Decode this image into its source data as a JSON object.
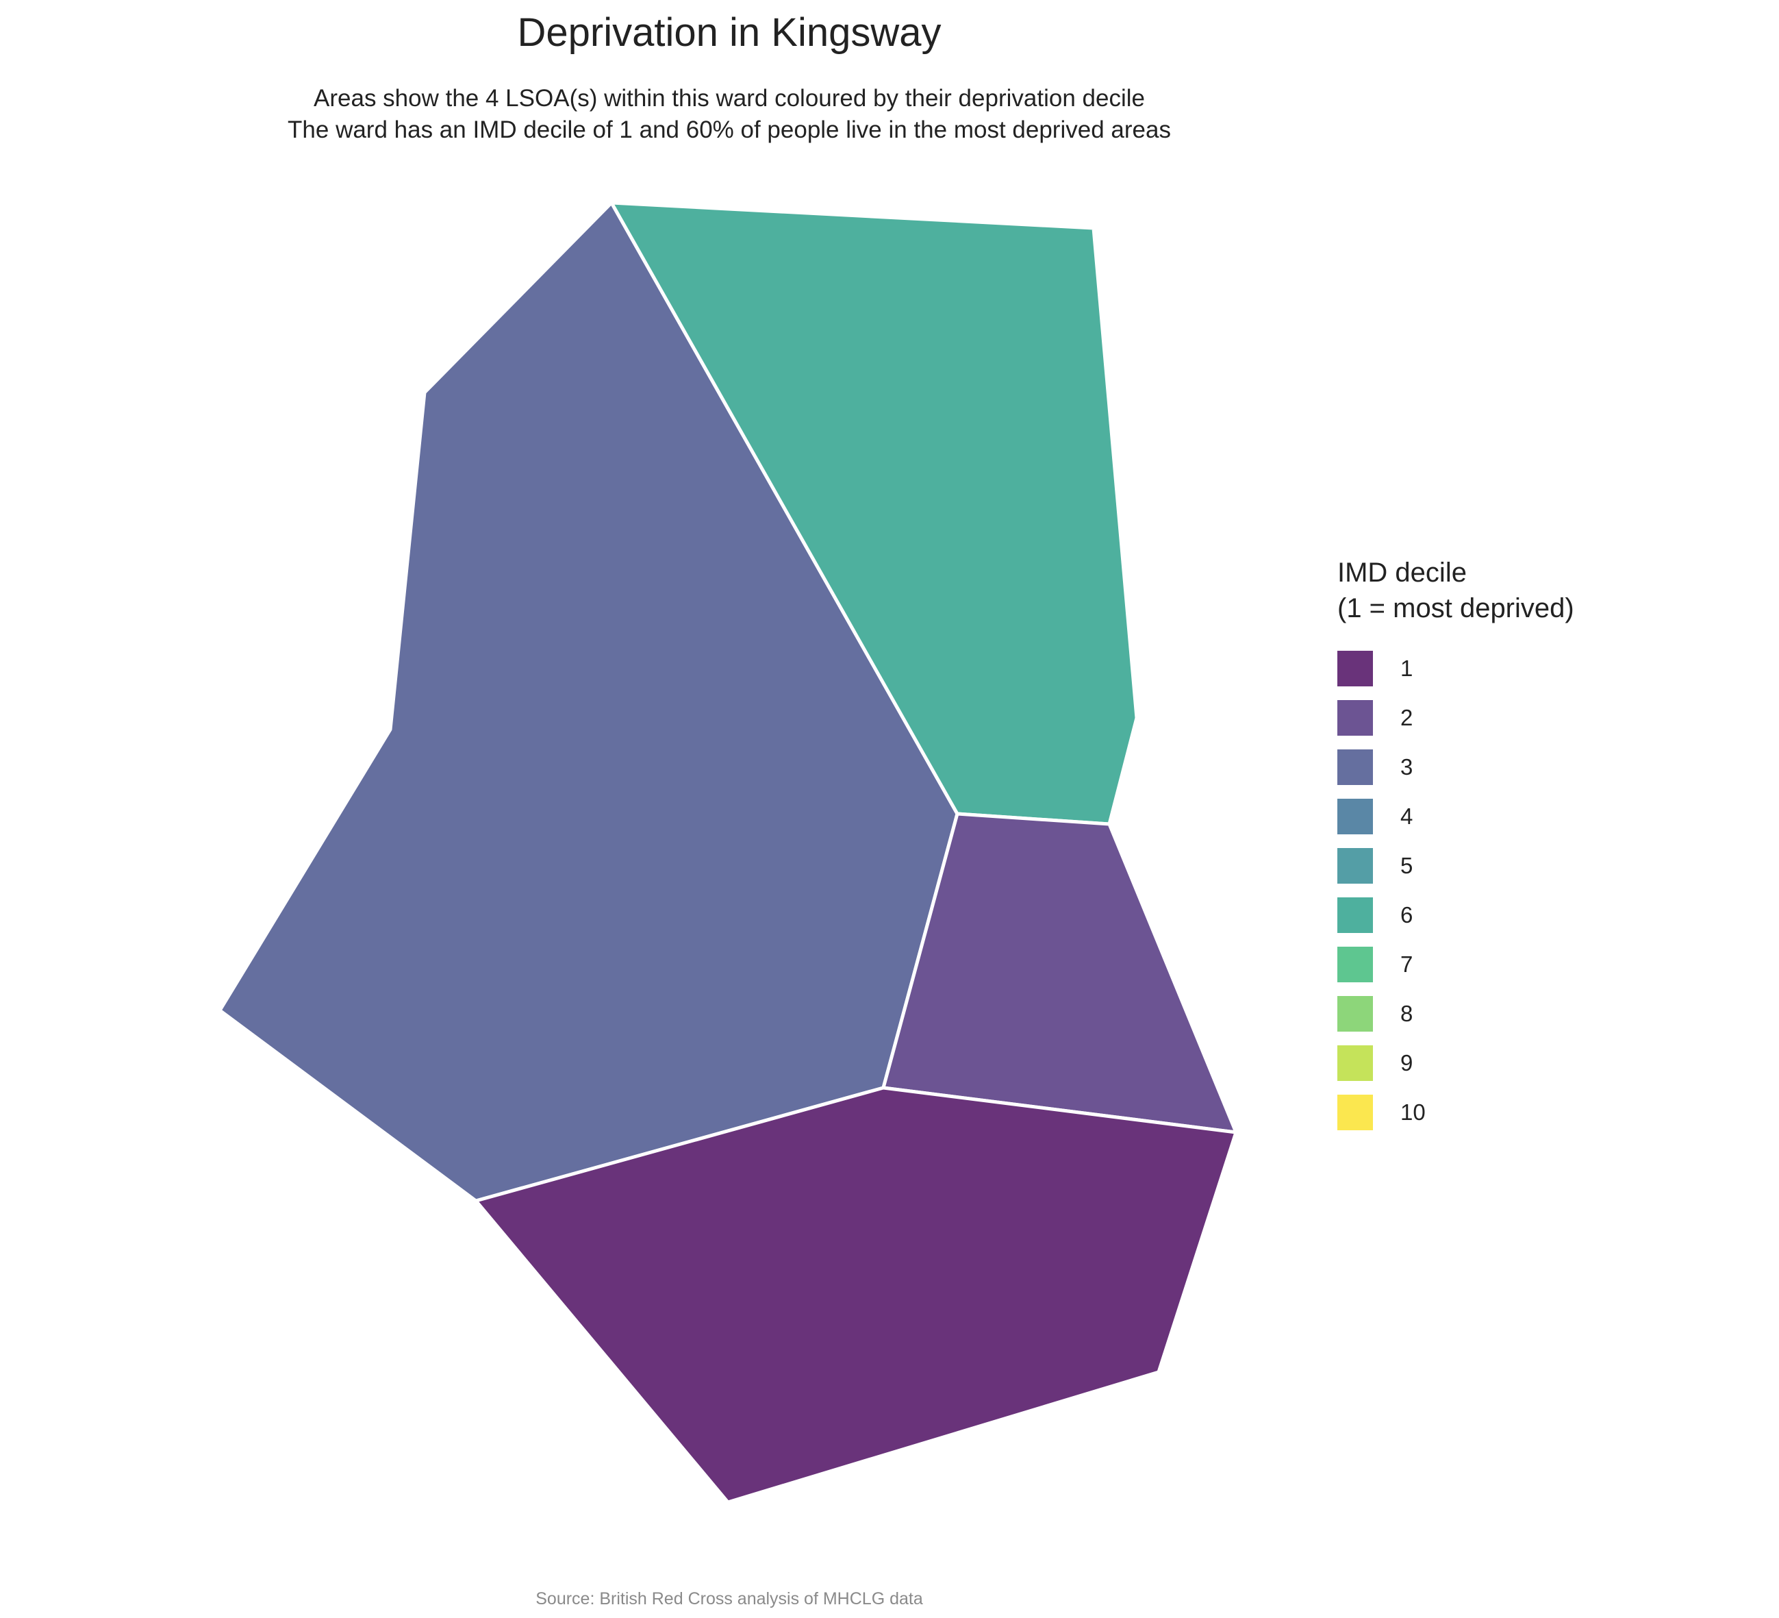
{
  "title": "Deprivation in Kingsway",
  "subtitle_lines": [
    "Areas show the 4 LSOA(s) within this ward coloured by their deprivation decile",
    "The ward has an IMD decile of 1 and 60% of people live in the most deprived areas"
  ],
  "legend": {
    "title_lines": [
      "IMD decile",
      "(1 = most deprived)"
    ],
    "items": [
      {
        "label": "1",
        "color": "#69337a"
      },
      {
        "label": "2",
        "color": "#6c5493"
      },
      {
        "label": "3",
        "color": "#656f9f"
      },
      {
        "label": "4",
        "color": "#5a87a6"
      },
      {
        "label": "5",
        "color": "#549ea6"
      },
      {
        "label": "6",
        "color": "#4eb09e"
      },
      {
        "label": "7",
        "color": "#5ec690"
      },
      {
        "label": "8",
        "color": "#8dd67a"
      },
      {
        "label": "9",
        "color": "#c5e35a"
      },
      {
        "label": "10",
        "color": "#fbe74f"
      }
    ]
  },
  "areas": [
    {
      "name": "lsoa-decile-3",
      "decile": 3,
      "color": "#656f9f"
    },
    {
      "name": "lsoa-decile-6",
      "decile": 6,
      "color": "#4eb09e"
    },
    {
      "name": "lsoa-decile-2",
      "decile": 2,
      "color": "#6c5493"
    },
    {
      "name": "lsoa-decile-1",
      "decile": 1,
      "color": "#69337a"
    }
  ],
  "source": "Source: British Red Cross analysis of MHCLG data"
}
